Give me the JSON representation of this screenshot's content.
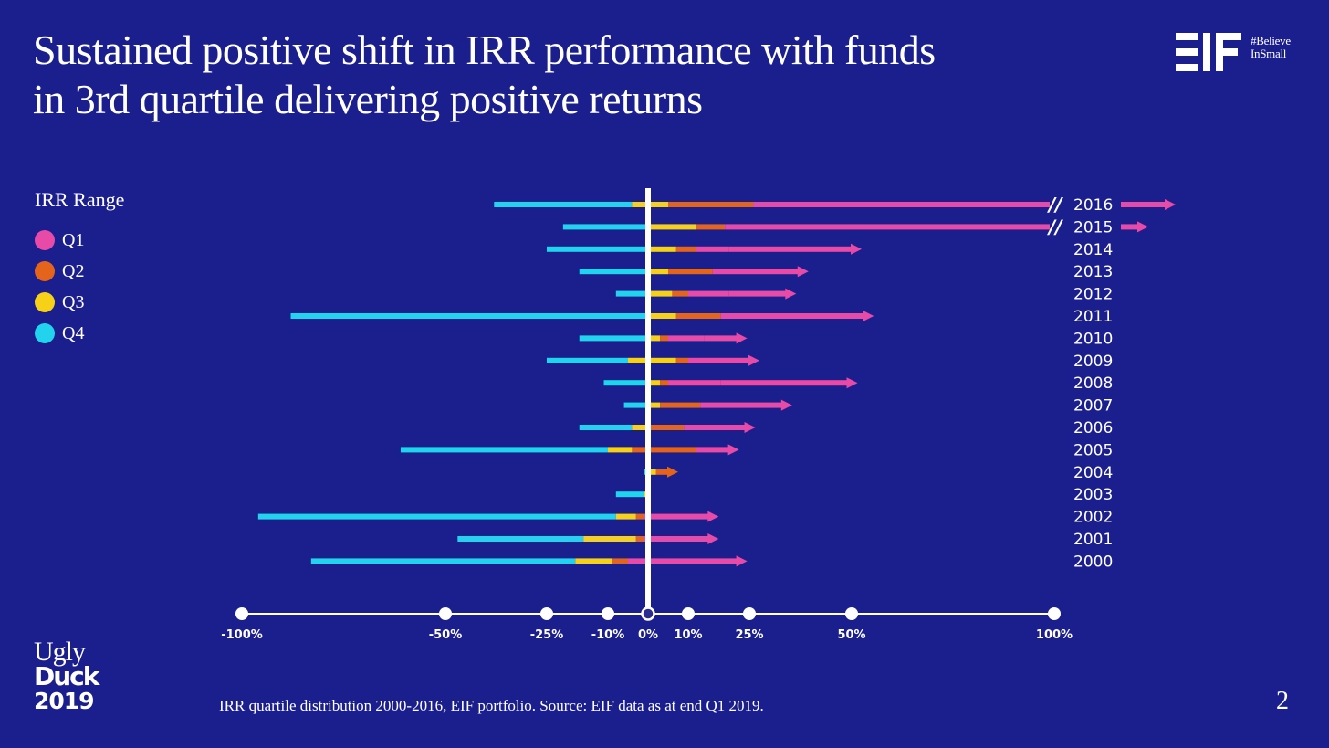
{
  "slide": {
    "title_line1": "Sustained positive shift in IRR performance with funds",
    "title_line2": "in 3rd quartile delivering positive returns",
    "brand_tag_line1": "#Believe",
    "brand_tag_line2": "InSmall",
    "event_line1": "Ugly",
    "event_line2": "Duck",
    "event_line3": "2019",
    "footnote": "IRR quartile distribution 2000-2016, EIF portfolio. Source: EIF data as at end Q1 2019.",
    "page_number": "2"
  },
  "legend": {
    "title": "IRR Range",
    "items": [
      {
        "label": "Q1",
        "color": "#e84aa8"
      },
      {
        "label": "Q2",
        "color": "#e5641c"
      },
      {
        "label": "Q3",
        "color": "#f7d117"
      },
      {
        "label": "Q4",
        "color": "#22d3ee"
      }
    ]
  },
  "chart_data": {
    "type": "bar",
    "orientation": "horizontal",
    "xlabel": "",
    "ylabel": "",
    "x_tick_labels": [
      "-100%",
      "-50%",
      "-25%",
      "-10%",
      "0%",
      "10%",
      "25%",
      "50%",
      "100%"
    ],
    "x_tick_values": [
      -100,
      -50,
      -25,
      -10,
      0,
      10,
      25,
      50,
      100
    ],
    "x_scale": "non-linear (expanded around 0%)",
    "categories": [
      "2016",
      "2015",
      "2014",
      "2013",
      "2012",
      "2011",
      "2010",
      "2009",
      "2008",
      "2007",
      "2006",
      "2005",
      "2004",
      "2003",
      "2002",
      "2001",
      "2000"
    ],
    "segment_order": [
      "Q4",
      "Q3",
      "Q2",
      "Q1"
    ],
    "bars": [
      {
        "year": "2016",
        "bounds": [
          -38,
          -4,
          5,
          26,
          100
        ],
        "arrow": true,
        "axis_break": true
      },
      {
        "year": "2015",
        "bounds": [
          -21,
          0,
          12,
          19,
          100
        ],
        "arrow": true,
        "axis_break": true
      },
      {
        "year": "2014",
        "bounds": [
          -25,
          0,
          7,
          12,
          20,
          50
        ],
        "arrow": true
      },
      {
        "year": "2013",
        "bounds": [
          -17,
          0,
          5,
          16,
          37
        ],
        "arrow": true
      },
      {
        "year": "2012",
        "bounds": [
          -8,
          0,
          6,
          10,
          20,
          34
        ],
        "arrow": true
      },
      {
        "year": "2011",
        "bounds": [
          -88,
          0,
          7,
          18,
          53
        ],
        "arrow": true
      },
      {
        "year": "2010",
        "bounds": [
          -17,
          0,
          3,
          5,
          14,
          22
        ],
        "arrow": true
      },
      {
        "year": "2009",
        "bounds": [
          -25,
          -5,
          7,
          10,
          25
        ],
        "arrow": true
      },
      {
        "year": "2008",
        "bounds": [
          -11,
          0,
          3,
          5,
          18,
          49
        ],
        "arrow": true
      },
      {
        "year": "2007",
        "bounds": [
          -6,
          0,
          3,
          13,
          33
        ],
        "arrow": true
      },
      {
        "year": "2006",
        "bounds": [
          -17,
          -4,
          0,
          9,
          24
        ],
        "arrow": true
      },
      {
        "year": "2005",
        "bounds": [
          -61,
          -10,
          -4,
          12,
          20
        ],
        "arrow": true
      },
      {
        "year": "2004",
        "bounds": [
          -1,
          0,
          2,
          5
        ],
        "arrow": true
      },
      {
        "year": "2003",
        "bounds": [
          -8,
          -1,
          0
        ],
        "arrow": false
      },
      {
        "year": "2002",
        "bounds": [
          -96,
          -8,
          -3,
          -1,
          15
        ],
        "arrow": true
      },
      {
        "year": "2001",
        "bounds": [
          -47,
          -16,
          -3,
          -1,
          4,
          15
        ],
        "arrow": true
      },
      {
        "year": "2000",
        "bounds": [
          -83,
          -18,
          -9,
          -5,
          22
        ],
        "arrow": true
      }
    ],
    "grid": false,
    "legend_position": "left"
  }
}
